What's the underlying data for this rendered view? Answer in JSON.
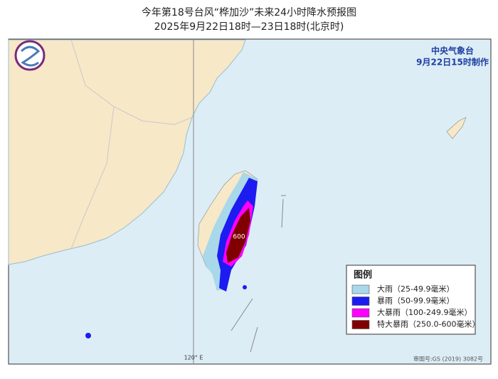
{
  "header": {
    "title": "今年第18号台风“桦加沙”未来24小时降水预报图",
    "subtitle": "2025年9月22日18时—23日18时(北京时)"
  },
  "agency": {
    "name": "中央气象台",
    "issued": "9月22日15时制作"
  },
  "legend": {
    "title": "图例",
    "items": [
      {
        "label": "大雨（25-49.9毫米）",
        "color": "#a8d8ea"
      },
      {
        "label": "暴雨（50-99.9毫米）",
        "color": "#1c1cf0"
      },
      {
        "label": "大暴雨（100-249.9毫米）",
        "color": "#ff00ff"
      },
      {
        "label": "特大暴雨（250.0-600毫米）",
        "color": "#800000"
      }
    ]
  },
  "map_labels": {
    "max_rain": "600",
    "meridian": "120° E",
    "review_number": "审图号:GS (2019) 3082号"
  }
}
